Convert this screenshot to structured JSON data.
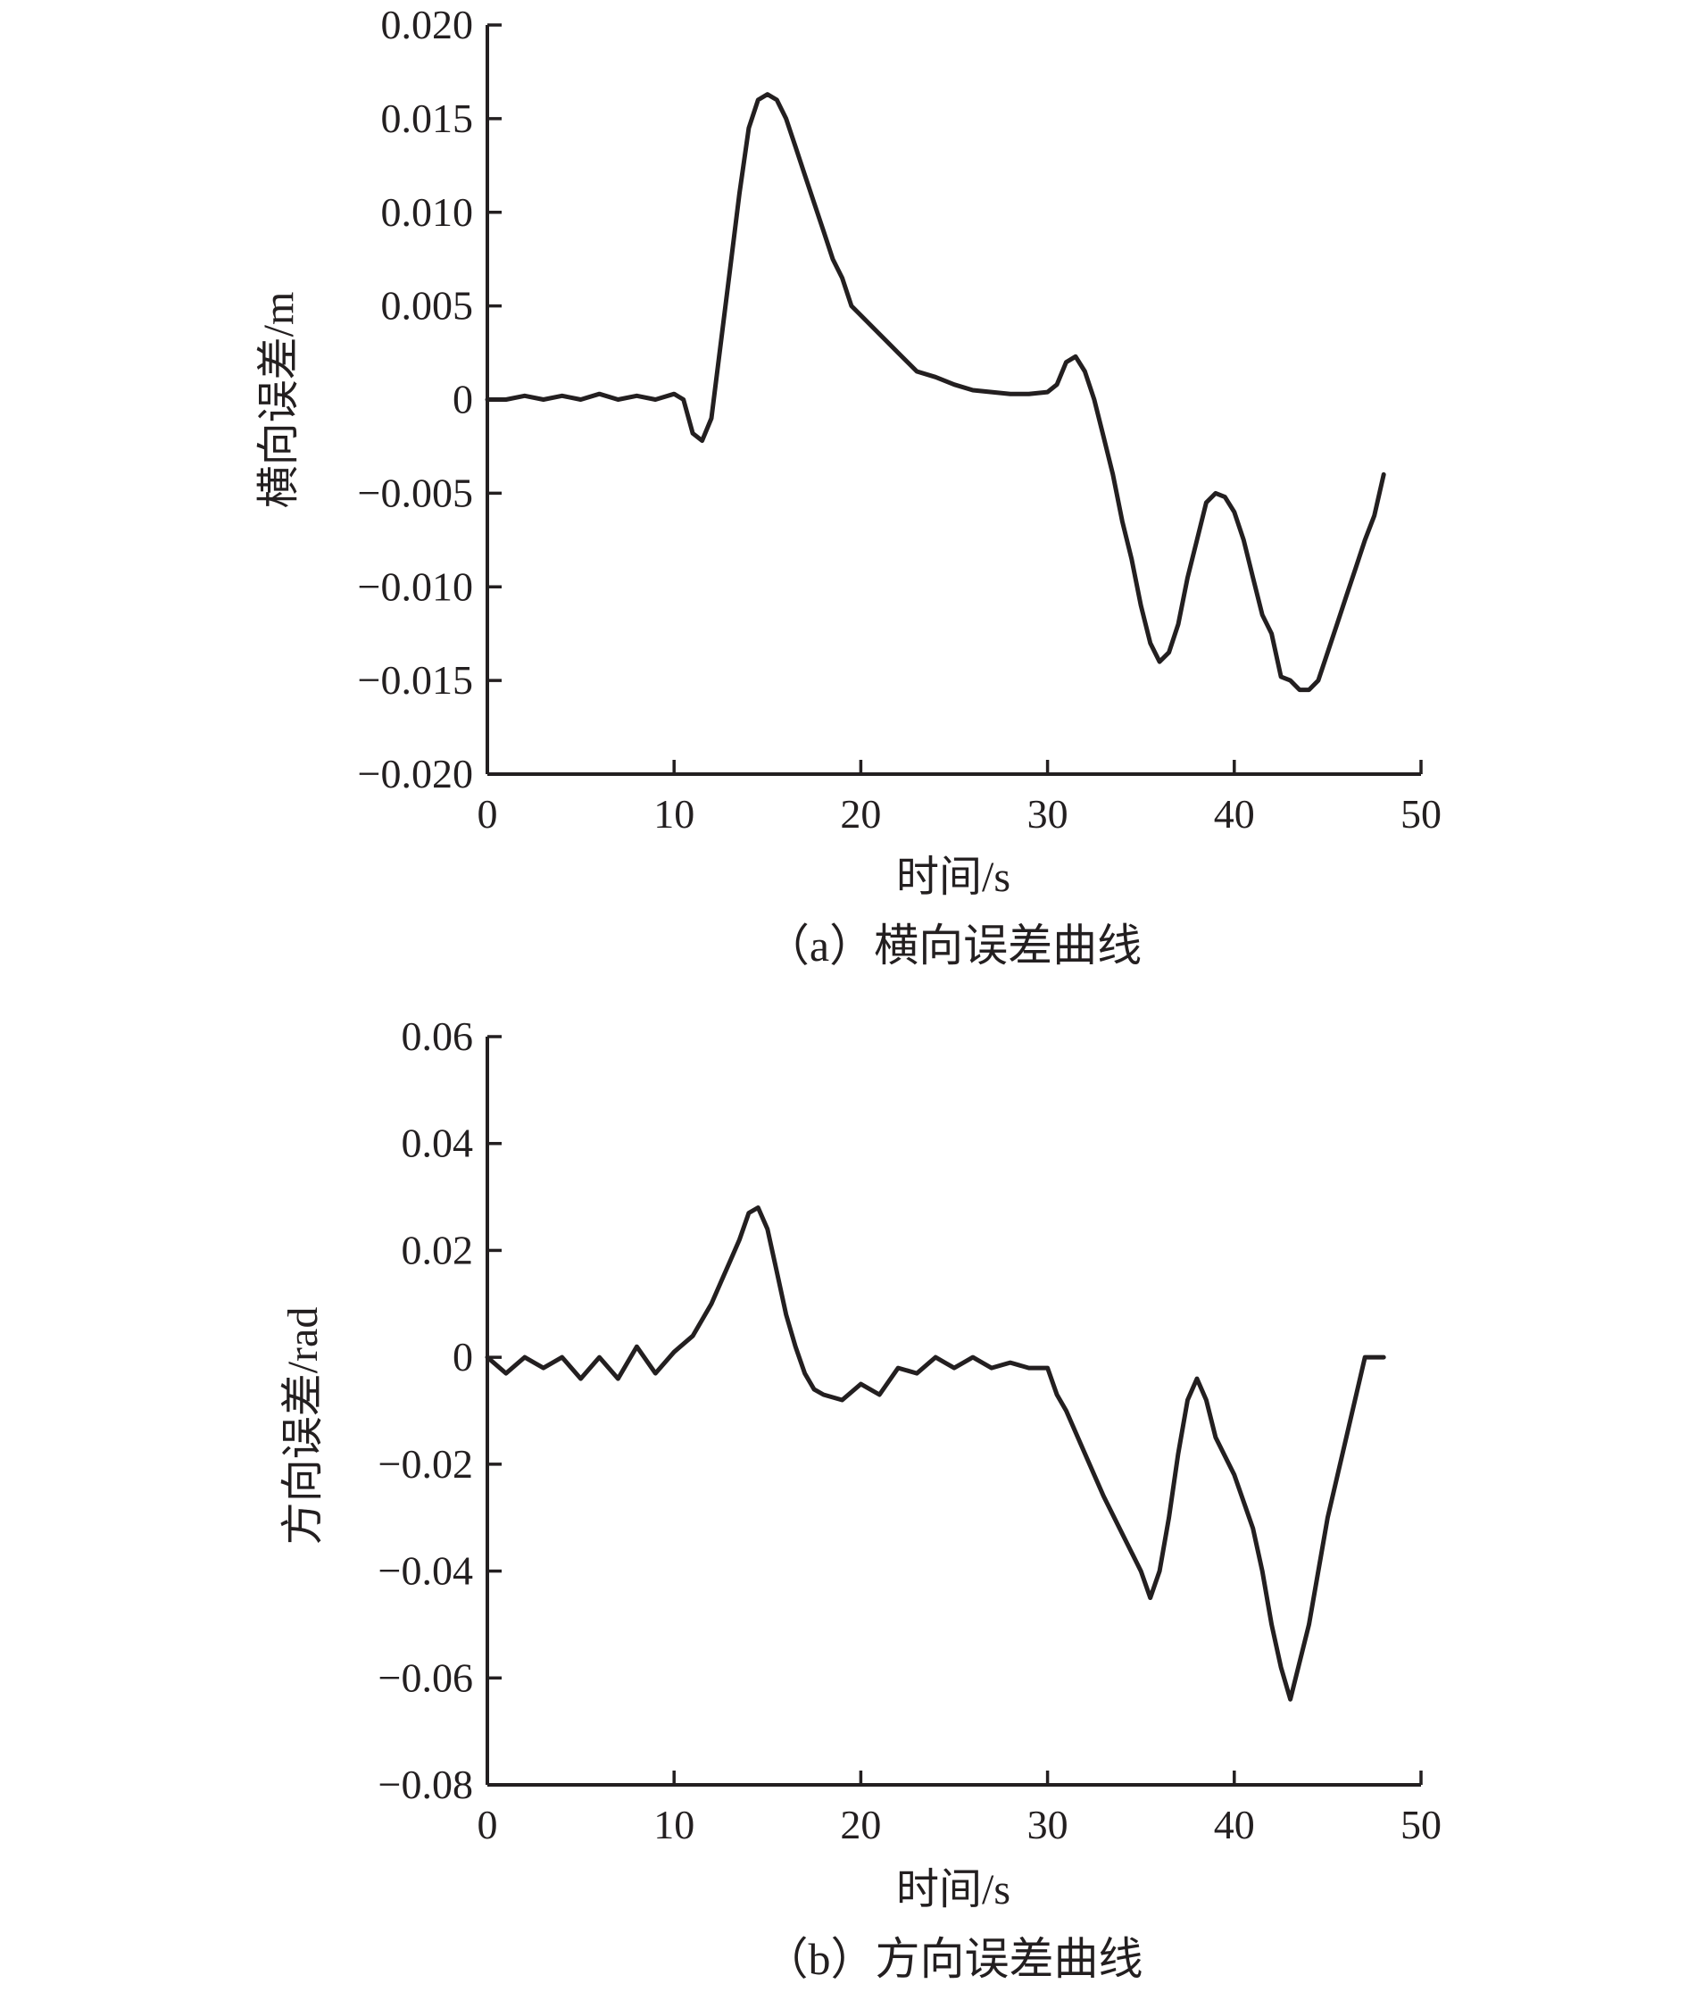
{
  "chart_data": [
    {
      "type": "line",
      "caption": "（a）横向误差曲线",
      "xlabel": "时间/s",
      "ylabel": "横向误差/m",
      "xlim": [
        0,
        50
      ],
      "ylim": [
        -0.02,
        0.02
      ],
      "x_ticks": [
        "0",
        "10",
        "20",
        "30",
        "40",
        "50"
      ],
      "y_ticks": [
        "0.020",
        "0.015",
        "0.010",
        "0.005",
        "0",
        "−0.005",
        "−0.010",
        "−0.015",
        "−0.020"
      ],
      "series": [
        {
          "x": [
            0,
            1,
            2,
            3,
            4,
            5,
            6,
            7,
            8,
            9,
            10,
            10.5,
            11,
            11.5,
            12,
            12.5,
            13,
            13.5,
            14,
            14.5,
            15,
            15.5,
            16,
            16.5,
            17,
            17.5,
            18,
            18.5,
            19,
            19.5,
            20,
            21,
            22,
            23,
            24,
            25,
            26,
            27,
            28,
            29,
            30,
            30.5,
            31,
            31.5,
            32,
            32.5,
            33,
            33.5,
            34,
            34.5,
            35,
            35.5,
            36,
            36.5,
            37,
            37.5,
            38,
            38.5,
            39,
            39.5,
            40,
            40.5,
            41,
            41.5,
            42,
            42.5,
            43,
            43.5,
            44,
            44.5,
            45,
            45.5,
            46,
            46.5,
            47,
            47.5,
            48
          ],
          "values": [
            0,
            0,
            0.0002,
            0,
            0.0002,
            0,
            0.0003,
            0,
            0.0002,
            0,
            0.0003,
            0,
            -0.0018,
            -0.0022,
            -0.001,
            0.003,
            0.007,
            0.011,
            0.0145,
            0.016,
            0.0163,
            0.016,
            0.015,
            0.0135,
            0.012,
            0.0105,
            0.009,
            0.0075,
            0.0065,
            0.005,
            0.0045,
            0.0035,
            0.0025,
            0.0015,
            0.0012,
            0.0008,
            0.0005,
            0.0004,
            0.0003,
            0.0003,
            0.0004,
            0.0008,
            0.002,
            0.0023,
            0.0015,
            0,
            -0.002,
            -0.004,
            -0.0065,
            -0.0085,
            -0.011,
            -0.013,
            -0.014,
            -0.0135,
            -0.012,
            -0.0095,
            -0.0075,
            -0.0055,
            -0.005,
            -0.0052,
            -0.006,
            -0.0075,
            -0.0095,
            -0.0115,
            -0.0125,
            -0.0148,
            -0.015,
            -0.0155,
            -0.0155,
            -0.015,
            -0.0135,
            -0.012,
            -0.0105,
            -0.009,
            -0.0075,
            -0.0062,
            -0.004
          ]
        }
      ]
    },
    {
      "type": "line",
      "caption": "（b）方向误差曲线",
      "xlabel": "时间/s",
      "ylabel": "方向误差/rad",
      "xlim": [
        0,
        50
      ],
      "ylim": [
        -0.08,
        0.06
      ],
      "x_ticks": [
        "0",
        "10",
        "20",
        "30",
        "40",
        "50"
      ],
      "y_ticks": [
        "0.06",
        "0.04",
        "0.02",
        "0",
        "−0.02",
        "−0.04",
        "−0.06",
        "−0.08"
      ],
      "series": [
        {
          "x": [
            0,
            1,
            2,
            3,
            4,
            5,
            6,
            7,
            8,
            9,
            10,
            11,
            12,
            12.5,
            13,
            13.5,
            14,
            14.5,
            15,
            15.5,
            16,
            16.5,
            17,
            17.5,
            18,
            19,
            20,
            21,
            22,
            23,
            24,
            25,
            26,
            27,
            28,
            29,
            30,
            30.5,
            31,
            32,
            33,
            34,
            35,
            35.5,
            36,
            36.5,
            37,
            37.5,
            38,
            38.5,
            39,
            40,
            41,
            41.5,
            42,
            42.5,
            43,
            44,
            45,
            46,
            47,
            48
          ],
          "values": [
            0,
            -0.003,
            0,
            -0.002,
            0,
            -0.004,
            0,
            -0.004,
            0.002,
            -0.003,
            0.001,
            0.004,
            0.01,
            0.014,
            0.018,
            0.022,
            0.027,
            0.028,
            0.024,
            0.016,
            0.008,
            0.002,
            -0.003,
            -0.006,
            -0.007,
            -0.008,
            -0.005,
            -0.007,
            -0.002,
            -0.003,
            0,
            -0.002,
            0,
            -0.002,
            -0.001,
            -0.002,
            -0.002,
            -0.007,
            -0.01,
            -0.018,
            -0.026,
            -0.033,
            -0.04,
            -0.045,
            -0.04,
            -0.03,
            -0.018,
            -0.008,
            -0.004,
            -0.008,
            -0.015,
            -0.022,
            -0.032,
            -0.04,
            -0.05,
            -0.058,
            -0.064,
            -0.05,
            -0.03,
            -0.015,
            0,
            0
          ]
        }
      ]
    }
  ]
}
